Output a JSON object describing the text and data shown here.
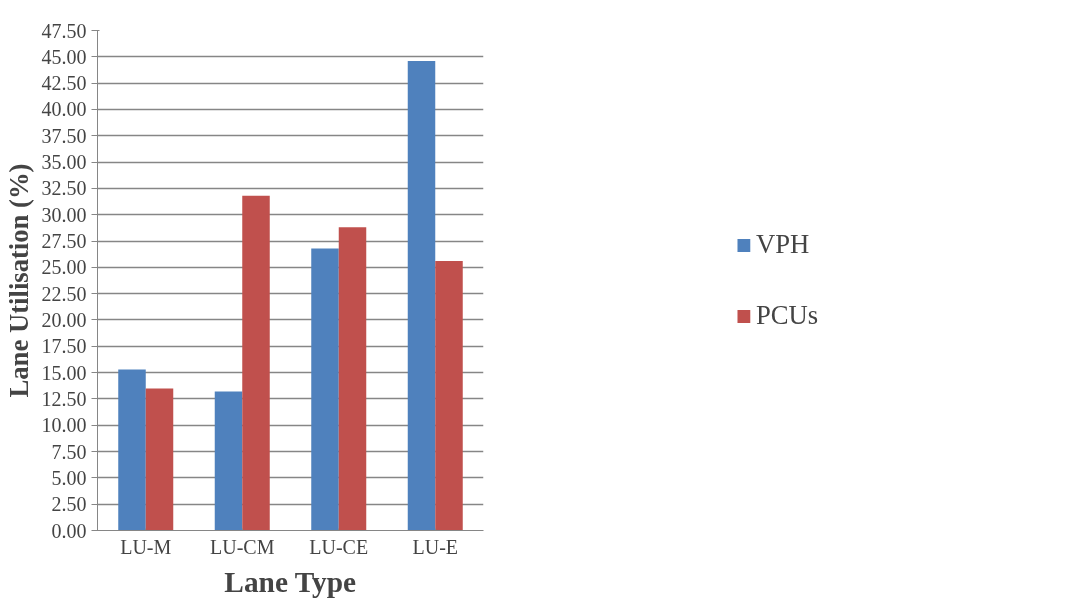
{
  "chart_data": {
    "type": "bar",
    "xlabel": "Lane Type",
    "ylabel": "Lane Utilisation (%)",
    "categories": [
      "LU-M",
      "LU-CM",
      "LU-CE",
      "LU-E"
    ],
    "series": [
      {
        "name": "VPH",
        "color": "#4f81bd",
        "values": [
          15.3,
          13.2,
          26.8,
          44.6
        ]
      },
      {
        "name": "PCUs",
        "color": "#c0504d",
        "values": [
          13.5,
          31.8,
          28.8,
          25.6
        ]
      }
    ],
    "ylim": [
      0,
      47.5
    ],
    "yticks": [
      {
        "value": 0,
        "label": "0.00"
      },
      {
        "value": 2.5,
        "label": "2.50"
      },
      {
        "value": 5,
        "label": "5.00"
      },
      {
        "value": 7.5,
        "label": "7.50"
      },
      {
        "value": 10,
        "label": "10.00"
      },
      {
        "value": 12.5,
        "label": "12.50"
      },
      {
        "value": 15,
        "label": "15.00"
      },
      {
        "value": 17.5,
        "label": "17.50"
      },
      {
        "value": 20,
        "label": "20.00"
      },
      {
        "value": 22.5,
        "label": "22.50"
      },
      {
        "value": 25,
        "label": "25.00"
      },
      {
        "value": 27.5,
        "label": "27.50"
      },
      {
        "value": 30,
        "label": "30.00"
      },
      {
        "value": 32.5,
        "label": "32.50"
      },
      {
        "value": 35,
        "label": "35.00"
      },
      {
        "value": 37.5,
        "label": "37.50"
      },
      {
        "value": 40,
        "label": "40.00"
      },
      {
        "value": 42.5,
        "label": "42.50"
      },
      {
        "value": 45,
        "label": "45.00"
      },
      {
        "value": 47.5,
        "label": "47.50"
      }
    ],
    "grid": "y",
    "legend": "right"
  }
}
